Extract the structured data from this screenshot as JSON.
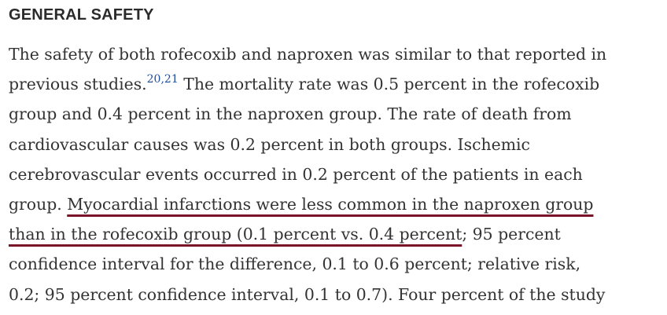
{
  "section": {
    "heading": "GENERAL SAFETY"
  },
  "paragraph": {
    "line1": "The safety of both rofecoxib and naproxen was similar to that reported in",
    "line2_start": "previous studies.",
    "line2_citation": "20,21",
    "line2_end": " The mortality rate was 0.5 percent in the rofecoxib",
    "line3": "group and 0.4 percent in the naproxen group. The rate of death from",
    "line4": "cardiovascular causes was 0.2 percent in both groups. Ischemic",
    "line5": "cerebrovascular events occurred in 0.2 percent of the patients in each",
    "line6_start": "group. ",
    "line6_highlight": "Myocardial infarctions were less common in the naproxen group",
    "line7_highlight": "than in the rofecoxib group (0.1 percent vs. 0.4 percent",
    "line7_end": "; 95 percent",
    "line8": "confidence interval for the difference, 0.1 to 0.6 percent; relative risk,",
    "line9": "0.2; 95 percent confidence interval, 0.1 to 0.7). Four percent of the study"
  },
  "colors": {
    "underline": "#7a1428",
    "citation": "#1f4e9b",
    "text": "#333333"
  }
}
